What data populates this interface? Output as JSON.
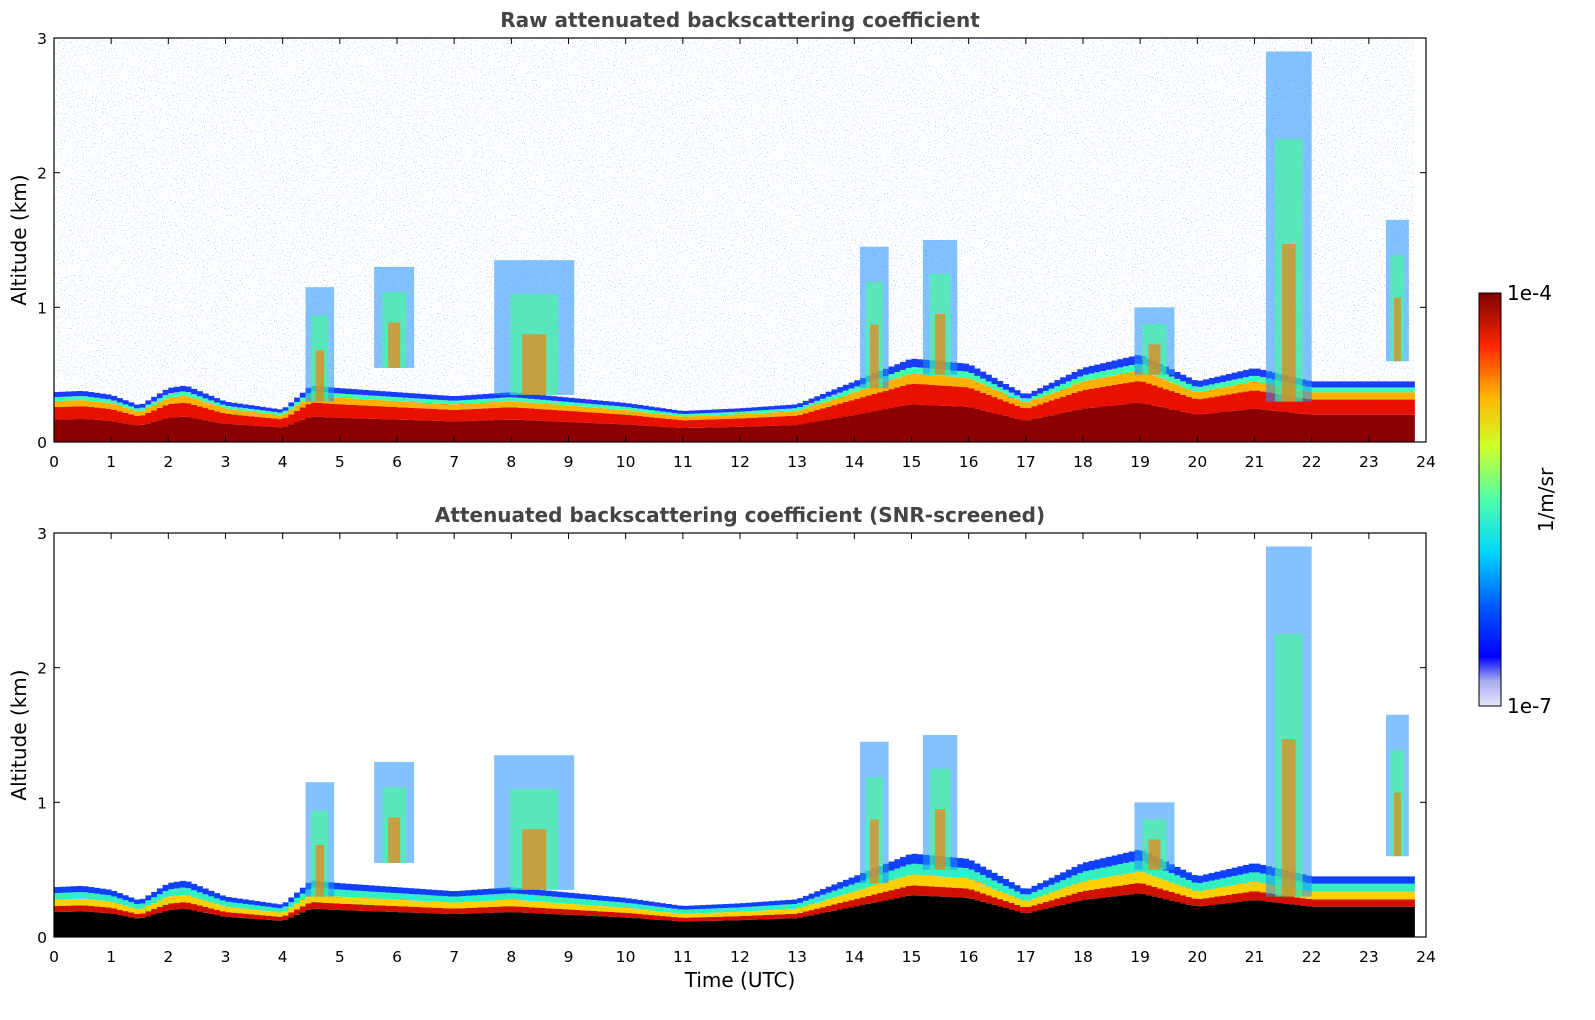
{
  "chart_data": [
    {
      "type": "heatmap",
      "title": "Raw attenuated backscattering coefficient",
      "xlabel": "",
      "ylabel": "Altitude (km)",
      "xlim": [
        0,
        24
      ],
      "ylim": [
        0,
        3
      ],
      "xticks": [
        "0",
        "1",
        "2",
        "3",
        "4",
        "5",
        "6",
        "7",
        "8",
        "9",
        "10",
        "11",
        "12",
        "13",
        "14",
        "15",
        "16",
        "17",
        "18",
        "19",
        "20",
        "21",
        "22",
        "23",
        "24"
      ],
      "yticks": [
        "0",
        "1",
        "2",
        "3"
      ],
      "layer_top_km": [
        [
          0,
          0.37
        ],
        [
          0.5,
          0.38
        ],
        [
          1.0,
          0.35
        ],
        [
          1.5,
          0.27
        ],
        [
          2.0,
          0.4
        ],
        [
          2.3,
          0.42
        ],
        [
          3.0,
          0.3
        ],
        [
          4.0,
          0.24
        ],
        [
          4.5,
          0.42
        ],
        [
          5.0,
          0.4
        ],
        [
          6.0,
          0.37
        ],
        [
          7.0,
          0.34
        ],
        [
          8.0,
          0.37
        ],
        [
          9.0,
          0.33
        ],
        [
          10.0,
          0.29
        ],
        [
          11.0,
          0.23
        ],
        [
          12.0,
          0.25
        ],
        [
          13.0,
          0.28
        ],
        [
          14.0,
          0.45
        ],
        [
          15.0,
          0.62
        ],
        [
          16.0,
          0.58
        ],
        [
          17.0,
          0.35
        ],
        [
          18.0,
          0.55
        ],
        [
          19.0,
          0.65
        ],
        [
          20.0,
          0.45
        ],
        [
          21.0,
          0.55
        ],
        [
          22.0,
          0.45
        ],
        [
          23.0,
          0.45
        ],
        [
          23.7,
          0.45
        ]
      ],
      "elevated_features": [
        {
          "t_start": 4.4,
          "t_end": 4.9,
          "base_km": 0.3,
          "top_km": 1.15
        },
        {
          "t_start": 5.6,
          "t_end": 6.3,
          "base_km": 0.55,
          "top_km": 1.3
        },
        {
          "t_start": 7.7,
          "t_end": 9.1,
          "base_km": 0.35,
          "top_km": 1.35
        },
        {
          "t_start": 14.1,
          "t_end": 14.6,
          "base_km": 0.4,
          "top_km": 1.45
        },
        {
          "t_start": 15.2,
          "t_end": 15.8,
          "base_km": 0.5,
          "top_km": 1.5
        },
        {
          "t_start": 18.9,
          "t_end": 19.6,
          "base_km": 0.5,
          "top_km": 1.0
        },
        {
          "t_start": 21.2,
          "t_end": 22.0,
          "base_km": 0.3,
          "top_km": 2.9
        },
        {
          "t_start": 23.3,
          "t_end": 23.7,
          "base_km": 0.6,
          "top_km": 1.65
        }
      ]
    },
    {
      "type": "heatmap",
      "title": "Attenuated backscattering coefficient (SNR-screened)",
      "xlabel": "Time (UTC)",
      "ylabel": "Altitude (km)",
      "xlim": [
        0,
        24
      ],
      "ylim": [
        0,
        3
      ],
      "xticks": [
        "0",
        "1",
        "2",
        "3",
        "4",
        "5",
        "6",
        "7",
        "8",
        "9",
        "10",
        "11",
        "12",
        "13",
        "14",
        "15",
        "16",
        "17",
        "18",
        "19",
        "20",
        "21",
        "22",
        "23",
        "24"
      ],
      "yticks": [
        "0",
        "1",
        "2",
        "3"
      ]
    }
  ],
  "colorbar": {
    "min_label": "1e-7",
    "max_label": "1e-4",
    "label": "1/m/sr",
    "scale": "log"
  }
}
